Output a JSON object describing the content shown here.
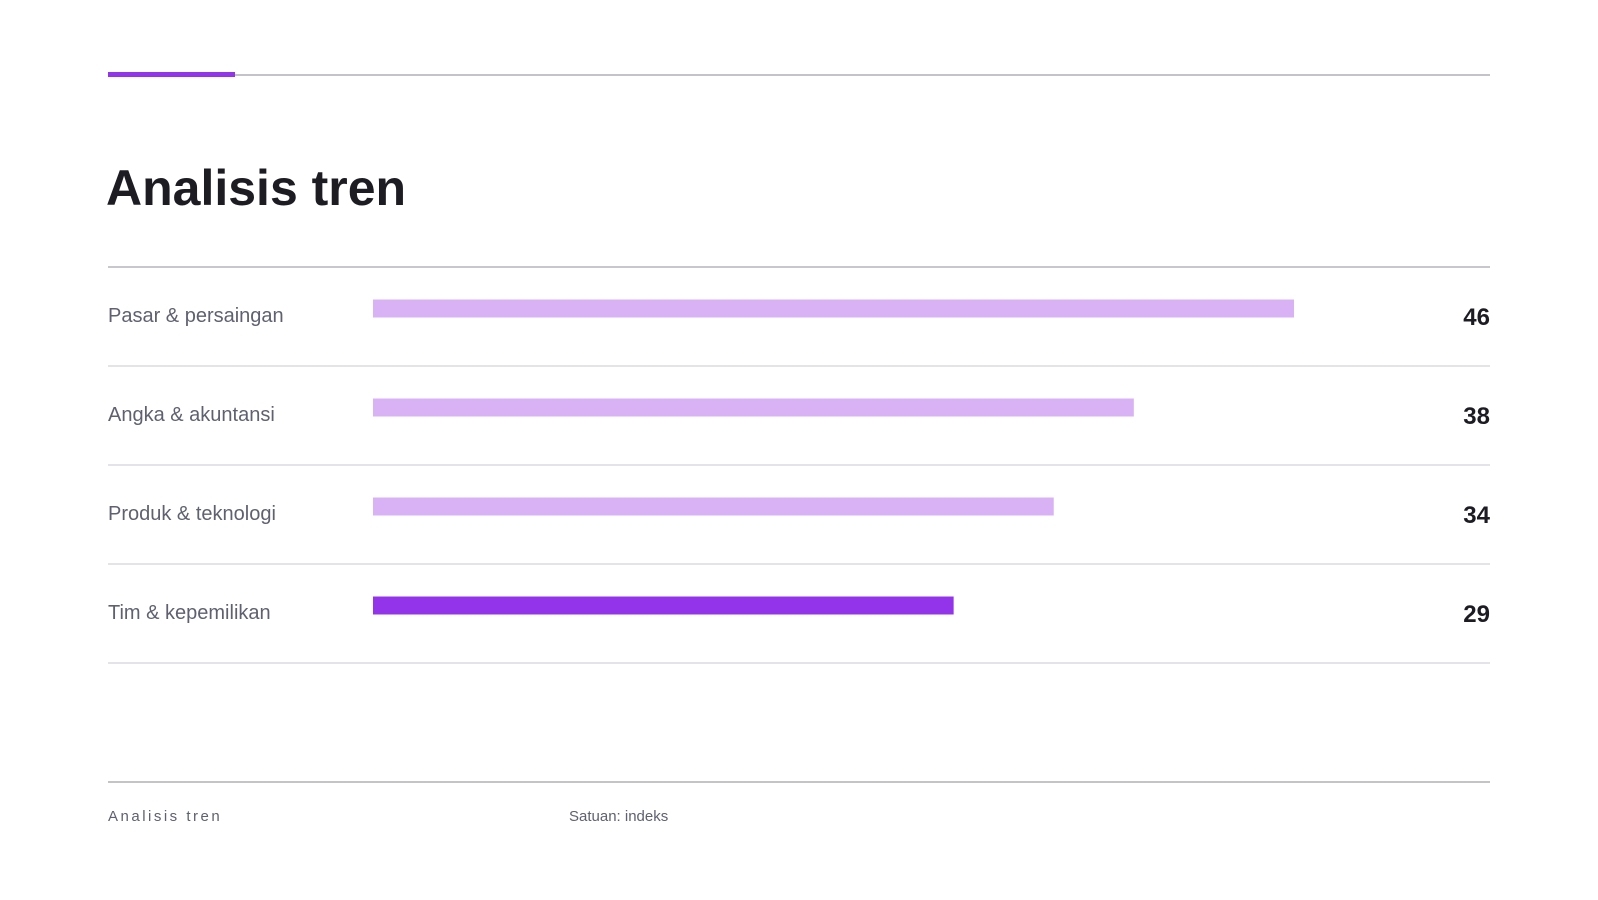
{
  "chart_data": {
    "type": "bar",
    "orientation": "horizontal",
    "title": "Analisis tren",
    "categories": [
      "Pasar & persaingan",
      "Angka & akuntansi",
      "Produk & teknologi",
      "Tim & kepemilikan"
    ],
    "values": [
      46,
      38,
      34,
      29
    ],
    "colors": [
      "#d9b2f5",
      "#d9b2f5",
      "#d9b2f5",
      "#9333ea"
    ],
    "footer": "Analisis tren",
    "unit": "Satuan: indeks"
  }
}
